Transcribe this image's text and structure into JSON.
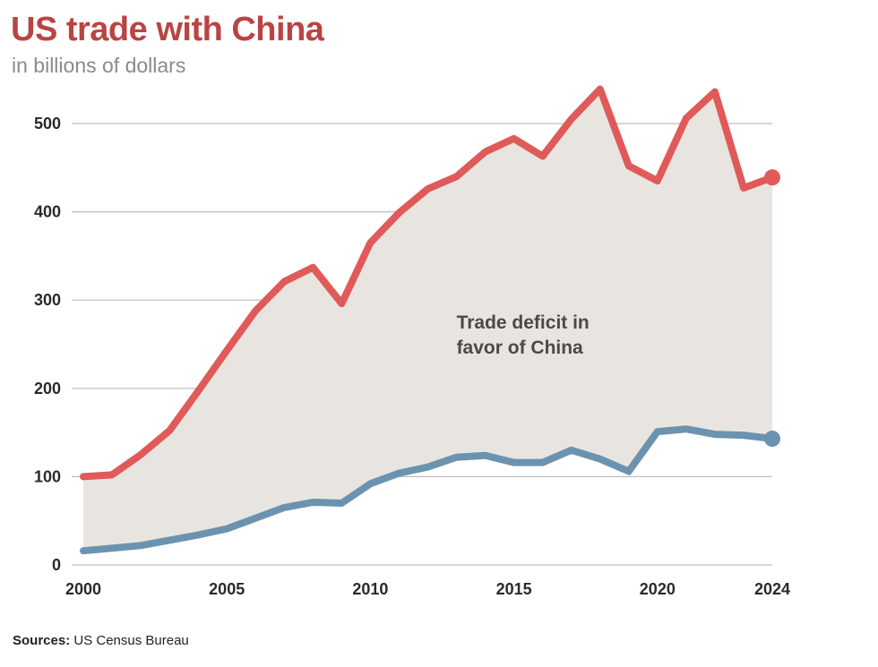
{
  "header": {
    "title": "US trade with China",
    "subtitle": "in billions of dollars"
  },
  "footer": {
    "source_label": "Sources:",
    "source_text": "US Census Bureau"
  },
  "colors": {
    "imports": "#e05a5a",
    "exports": "#6b93b0",
    "fill": "#e8e5e0",
    "grid": "#bdbdbd"
  },
  "chart_data": {
    "type": "line",
    "title": "US trade with China",
    "subtitle": "in billions of dollars",
    "xlabel": "",
    "ylabel": "",
    "xlim": [
      2000,
      2024
    ],
    "ylim": [
      0,
      550
    ],
    "x_ticks": [
      2000,
      2005,
      2010,
      2015,
      2020,
      2024
    ],
    "y_ticks": [
      0,
      100,
      200,
      300,
      400,
      500
    ],
    "grid": "horizontal",
    "x": [
      2000,
      2001,
      2002,
      2003,
      2004,
      2005,
      2006,
      2007,
      2008,
      2009,
      2010,
      2011,
      2012,
      2013,
      2014,
      2015,
      2016,
      2017,
      2018,
      2019,
      2020,
      2021,
      2022,
      2023,
      2024
    ],
    "series": [
      {
        "values": [
          100,
          102,
          125,
          152,
          197,
          243,
          288,
          321,
          337,
          296,
          365,
          399,
          426,
          440,
          468,
          483,
          463,
          505,
          539,
          452,
          435,
          506,
          536,
          427,
          439
        ]
      },
      {
        "values": [
          16,
          19,
          22,
          28,
          34,
          41,
          53,
          65,
          71,
          70,
          92,
          104,
          111,
          122,
          124,
          116,
          116,
          130,
          120,
          106,
          151,
          154,
          148,
          147,
          143
        ]
      }
    ],
    "annotations": [
      {
        "lines": [
          "Trade deficit in",
          "favor of China"
        ],
        "x": 2013.5,
        "y": 268
      }
    ]
  }
}
